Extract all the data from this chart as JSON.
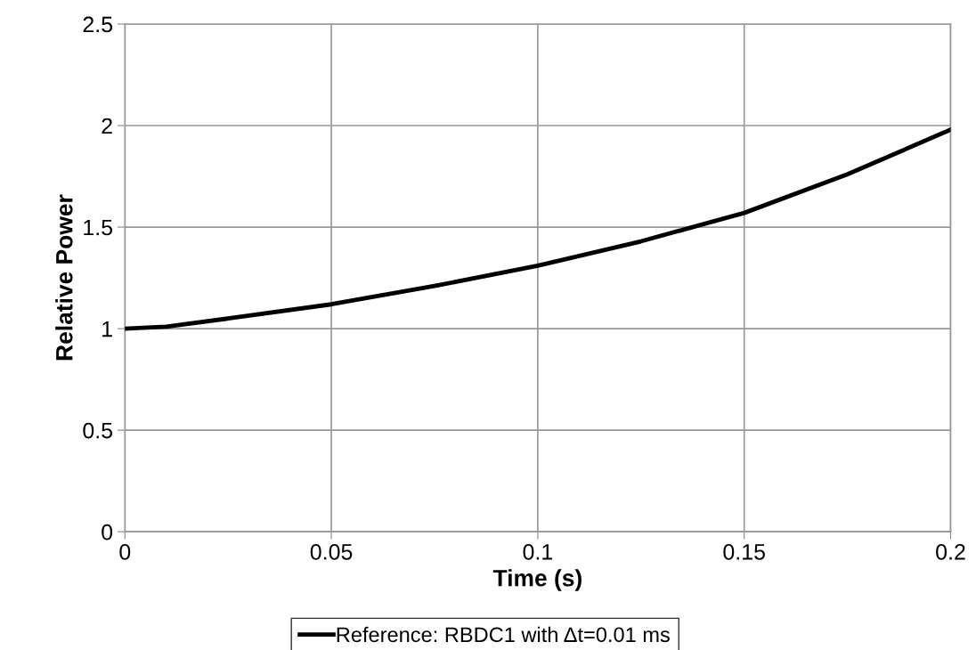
{
  "chart_data": {
    "type": "line",
    "xlabel": "Time (s)",
    "ylabel": "Relative Power",
    "x": [
      0,
      0.01,
      0.025,
      0.05,
      0.075,
      0.1,
      0.125,
      0.15,
      0.175,
      0.2
    ],
    "series": [
      {
        "name": "Reference: RBDC1 with Δt=0.01 ms",
        "color": "#000000",
        "values": [
          1.0,
          1.01,
          1.05,
          1.12,
          1.21,
          1.31,
          1.43,
          1.57,
          1.76,
          1.98
        ]
      }
    ],
    "xlim": [
      0,
      0.2
    ],
    "xticks": [
      0,
      0.05,
      0.1,
      0.15,
      0.2
    ],
    "ylim": [
      0,
      2.5
    ],
    "yticks": [
      0,
      0.5,
      1,
      1.5,
      2,
      2.5
    ],
    "grid": true,
    "legend": "bottom",
    "marker": "none",
    "line_style": "solid"
  }
}
